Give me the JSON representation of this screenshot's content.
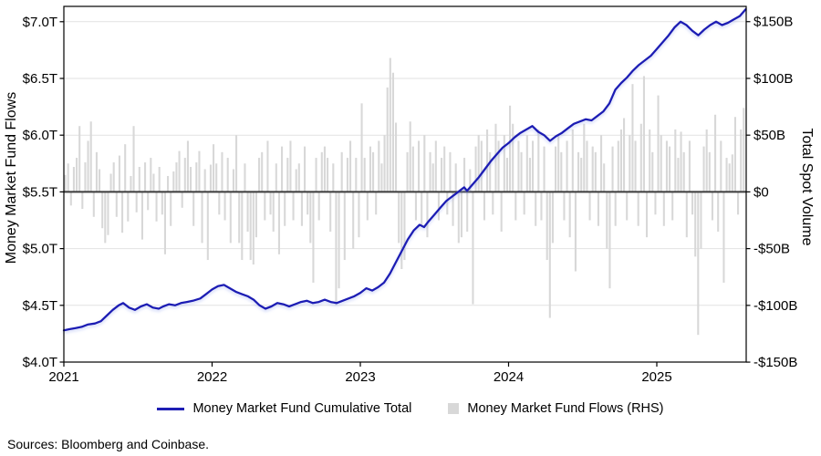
{
  "footer": {
    "sources": "Sources: Bloomberg and Coinbase."
  },
  "legend": {
    "items": [
      {
        "label": "Money Market Fund Cumulative Total",
        "swatch": "line",
        "color": "#1e1eb4"
      },
      {
        "label": "Money Market Fund Flows (RHS)",
        "swatch": "square",
        "color": "#d8d8d8"
      }
    ]
  },
  "chart_data": {
    "type": "combo",
    "title": "",
    "grid": true,
    "grid_color": "#e2e2e2",
    "zero_line_color": "#3c3c3c",
    "frame_color": "#000000",
    "background": "#ffffff",
    "left_axis": {
      "label": "Money Market Fund Flows",
      "unit": "$T",
      "min": 4.0,
      "max": 7.0,
      "tick_labels": [
        "$7.0T",
        "$6.5T",
        "$6.0T",
        "$5.5T",
        "$5.0T",
        "$4.5T",
        "$4.0T"
      ],
      "tick_values": [
        7.0,
        6.5,
        6.0,
        5.5,
        5.0,
        4.5,
        4.0
      ]
    },
    "right_axis": {
      "label": "Total Spot Volume",
      "unit": "$B",
      "min": -150,
      "max": 150,
      "tick_labels": [
        "$150B",
        "$100B",
        "$50B",
        "$0",
        "-$50B",
        "-$100B",
        "-$150B"
      ],
      "tick_values": [
        150,
        100,
        50,
        0,
        -50,
        -100,
        -150
      ]
    },
    "x_axis": {
      "start": 2021.0,
      "end": 2025.6,
      "tick_labels": [
        "2021",
        "2022",
        "2023",
        "2024",
        "2025"
      ],
      "tick_values": [
        2021,
        2022,
        2023,
        2024,
        2025
      ]
    },
    "series": [
      {
        "name": "Money Market Fund Cumulative Total",
        "type": "line",
        "axis": "left",
        "unit": "$T",
        "color": "#1e1eb4",
        "points": [
          [
            2021.0,
            4.28
          ],
          [
            2021.04,
            4.29
          ],
          [
            2021.08,
            4.3
          ],
          [
            2021.12,
            4.31
          ],
          [
            2021.16,
            4.33
          ],
          [
            2021.21,
            4.34
          ],
          [
            2021.25,
            4.36
          ],
          [
            2021.29,
            4.41
          ],
          [
            2021.33,
            4.46
          ],
          [
            2021.37,
            4.5
          ],
          [
            2021.4,
            4.52
          ],
          [
            2021.44,
            4.48
          ],
          [
            2021.48,
            4.46
          ],
          [
            2021.52,
            4.49
          ],
          [
            2021.56,
            4.51
          ],
          [
            2021.6,
            4.48
          ],
          [
            2021.64,
            4.47
          ],
          [
            2021.67,
            4.49
          ],
          [
            2021.71,
            4.51
          ],
          [
            2021.75,
            4.5
          ],
          [
            2021.79,
            4.52
          ],
          [
            2021.83,
            4.53
          ],
          [
            2021.87,
            4.54
          ],
          [
            2021.92,
            4.56
          ],
          [
            2021.96,
            4.6
          ],
          [
            2022.0,
            4.64
          ],
          [
            2022.04,
            4.67
          ],
          [
            2022.08,
            4.68
          ],
          [
            2022.12,
            4.65
          ],
          [
            2022.16,
            4.62
          ],
          [
            2022.2,
            4.6
          ],
          [
            2022.24,
            4.58
          ],
          [
            2022.28,
            4.55
          ],
          [
            2022.32,
            4.5
          ],
          [
            2022.36,
            4.47
          ],
          [
            2022.4,
            4.49
          ],
          [
            2022.44,
            4.52
          ],
          [
            2022.48,
            4.51
          ],
          [
            2022.52,
            4.49
          ],
          [
            2022.56,
            4.51
          ],
          [
            2022.6,
            4.53
          ],
          [
            2022.64,
            4.54
          ],
          [
            2022.68,
            4.52
          ],
          [
            2022.72,
            4.53
          ],
          [
            2022.76,
            4.55
          ],
          [
            2022.8,
            4.53
          ],
          [
            2022.84,
            4.52
          ],
          [
            2022.88,
            4.54
          ],
          [
            2022.92,
            4.56
          ],
          [
            2022.96,
            4.58
          ],
          [
            2023.0,
            4.61
          ],
          [
            2023.04,
            4.65
          ],
          [
            2023.08,
            4.63
          ],
          [
            2023.12,
            4.66
          ],
          [
            2023.16,
            4.7
          ],
          [
            2023.2,
            4.78
          ],
          [
            2023.24,
            4.88
          ],
          [
            2023.28,
            4.98
          ],
          [
            2023.32,
            5.08
          ],
          [
            2023.36,
            5.16
          ],
          [
            2023.4,
            5.21
          ],
          [
            2023.43,
            5.19
          ],
          [
            2023.46,
            5.24
          ],
          [
            2023.5,
            5.3
          ],
          [
            2023.54,
            5.36
          ],
          [
            2023.58,
            5.42
          ],
          [
            2023.61,
            5.45
          ],
          [
            2023.64,
            5.48
          ],
          [
            2023.67,
            5.51
          ],
          [
            2023.7,
            5.54
          ],
          [
            2023.72,
            5.51
          ],
          [
            2023.76,
            5.57
          ],
          [
            2023.8,
            5.63
          ],
          [
            2023.84,
            5.7
          ],
          [
            2023.88,
            5.77
          ],
          [
            2023.92,
            5.83
          ],
          [
            2023.96,
            5.89
          ],
          [
            2024.0,
            5.93
          ],
          [
            2024.04,
            5.98
          ],
          [
            2024.08,
            6.02
          ],
          [
            2024.12,
            6.05
          ],
          [
            2024.16,
            6.08
          ],
          [
            2024.2,
            6.03
          ],
          [
            2024.24,
            6.0
          ],
          [
            2024.28,
            5.95
          ],
          [
            2024.32,
            5.99
          ],
          [
            2024.36,
            6.02
          ],
          [
            2024.4,
            6.06
          ],
          [
            2024.44,
            6.1
          ],
          [
            2024.48,
            6.12
          ],
          [
            2024.52,
            6.14
          ],
          [
            2024.56,
            6.13
          ],
          [
            2024.6,
            6.17
          ],
          [
            2024.64,
            6.21
          ],
          [
            2024.68,
            6.28
          ],
          [
            2024.72,
            6.4
          ],
          [
            2024.76,
            6.46
          ],
          [
            2024.8,
            6.51
          ],
          [
            2024.84,
            6.57
          ],
          [
            2024.88,
            6.62
          ],
          [
            2024.92,
            6.66
          ],
          [
            2024.96,
            6.7
          ],
          [
            2025.0,
            6.76
          ],
          [
            2025.04,
            6.82
          ],
          [
            2025.08,
            6.88
          ],
          [
            2025.12,
            6.95
          ],
          [
            2025.16,
            7.0
          ],
          [
            2025.2,
            6.97
          ],
          [
            2025.24,
            6.92
          ],
          [
            2025.28,
            6.88
          ],
          [
            2025.32,
            6.93
          ],
          [
            2025.36,
            6.97
          ],
          [
            2025.4,
            7.0
          ],
          [
            2025.44,
            6.97
          ],
          [
            2025.48,
            6.99
          ],
          [
            2025.52,
            7.02
          ],
          [
            2025.56,
            7.05
          ],
          [
            2025.6,
            7.11
          ]
        ]
      },
      {
        "name": "Money Market Fund Flows (RHS)",
        "type": "bar",
        "axis": "right",
        "unit": "$B",
        "color": "#d8d8d8",
        "start": 2021.0,
        "weeks_per_year": 52,
        "values": [
          15,
          25,
          -12,
          22,
          30,
          58,
          -15,
          26,
          45,
          62,
          -22,
          35,
          20,
          -32,
          -45,
          -38,
          16,
          26,
          -22,
          32,
          -36,
          42,
          -26,
          14,
          58,
          -18,
          22,
          -42,
          26,
          -16,
          30,
          16,
          -26,
          22,
          -20,
          -55,
          14,
          -30,
          18,
          26,
          36,
          -14,
          30,
          45,
          22,
          -30,
          26,
          36,
          -45,
          20,
          -60,
          24,
          42,
          25,
          -20,
          35,
          -25,
          30,
          -45,
          20,
          50,
          -45,
          -60,
          25,
          -35,
          -60,
          -64,
          -40,
          30,
          35,
          -25,
          45,
          -20,
          -35,
          25,
          -55,
          40,
          -30,
          30,
          45,
          -25,
          20,
          25,
          -30,
          40,
          -20,
          -45,
          -80,
          30,
          -25,
          35,
          40,
          30,
          -35,
          25,
          -100,
          -85,
          35,
          -60,
          30,
          45,
          -50,
          30,
          -40,
          78,
          30,
          -25,
          40,
          35,
          -20,
          45,
          25,
          50,
          92,
          118,
          105,
          61,
          -45,
          -68,
          -60,
          35,
          62,
          40,
          -25,
          45,
          -30,
          50,
          -40,
          35,
          25,
          45,
          -25,
          30,
          40,
          -20,
          35,
          -30,
          25,
          -45,
          -40,
          30,
          -35,
          20,
          -99,
          40,
          50,
          45,
          -25,
          55,
          35,
          -20,
          60,
          45,
          -35,
          50,
          30,
          76,
          60,
          -25,
          45,
          35,
          -20,
          50,
          30,
          45,
          -30,
          55,
          -25,
          40,
          -60,
          -111,
          -45,
          40,
          50,
          35,
          -25,
          45,
          -40,
          55,
          -70,
          35,
          30,
          60,
          45,
          -25,
          40,
          35,
          -30,
          50,
          25,
          -50,
          -85,
          40,
          -30,
          45,
          55,
          65,
          -25,
          50,
          95,
          45,
          -30,
          60,
          102,
          -40,
          55,
          35,
          -20,
          85,
          50,
          -30,
          45,
          40,
          -25,
          55,
          30,
          53,
          35,
          -40,
          45,
          -20,
          -57,
          -126,
          -50,
          40,
          55,
          35,
          -25,
          68,
          -35,
          45,
          -80,
          30,
          25,
          33,
          66,
          -20,
          55,
          74
        ]
      }
    ]
  }
}
